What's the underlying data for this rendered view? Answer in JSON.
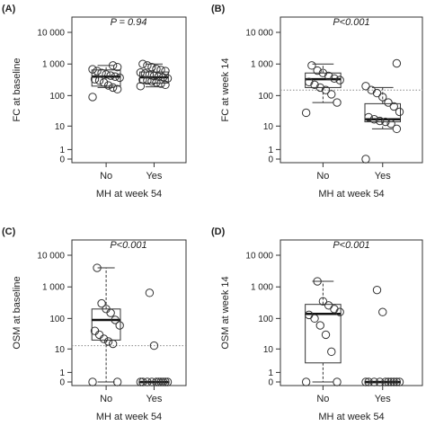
{
  "chart_data": [
    {
      "type": "box",
      "panel": "(A)",
      "pvalue": "P = 0.94",
      "ylabel": "FC at baseline",
      "xlabel": "MH at week 54",
      "categories": [
        "No",
        "Yes"
      ],
      "y_ticks": [
        0,
        1,
        10,
        100,
        1000,
        10000
      ],
      "y_tick_labels": [
        "0",
        "1",
        "10",
        "100",
        "1 000",
        "10 000"
      ],
      "y_scale": "log1p",
      "threshold": null,
      "groups": [
        {
          "name": "No",
          "box": {
            "low": 180,
            "q1": 200,
            "median": 400,
            "q3": 650,
            "high": 900
          },
          "points": [
            90,
            160,
            180,
            210,
            260,
            300,
            330,
            370,
            400,
            430,
            470,
            520,
            600,
            680,
            800,
            900
          ]
        },
        {
          "name": "Yes",
          "box": {
            "low": 190,
            "q1": 250,
            "median": 380,
            "q3": 560,
            "high": 1000
          },
          "points": [
            200,
            220,
            240,
            260,
            280,
            300,
            320,
            350,
            380,
            400,
            420,
            460,
            500,
            540,
            600,
            650,
            700,
            800,
            900,
            1000
          ]
        }
      ]
    },
    {
      "type": "box",
      "panel": "(B)",
      "pvalue": "P<0.001",
      "ylabel": "FC at week 14",
      "xlabel": "MH at week 54",
      "categories": [
        "No",
        "Yes"
      ],
      "y_ticks": [
        0,
        1,
        10,
        100,
        1000,
        10000
      ],
      "y_tick_labels": [
        "0",
        "1",
        "10",
        "100",
        "1 000",
        "10 000"
      ],
      "y_scale": "log1p",
      "threshold": 150,
      "groups": [
        {
          "name": "No",
          "box": {
            "low": 60,
            "q1": 180,
            "median": 330,
            "q3": 520,
            "high": 1000
          },
          "points": [
            28,
            60,
            110,
            150,
            180,
            220,
            270,
            310,
            350,
            420,
            520,
            620,
            900
          ]
        },
        {
          "name": "Yes",
          "box": {
            "low": 8,
            "q1": 14,
            "median": 17,
            "q3": 55,
            "high": 180
          },
          "points": [
            0,
            8,
            12,
            14,
            15,
            17,
            20,
            30,
            45,
            60,
            90,
            120,
            150,
            200,
            1050
          ]
        }
      ]
    },
    {
      "type": "box",
      "panel": "(C)",
      "pvalue": "P<0.001",
      "ylabel": "OSM at baseline",
      "xlabel": "MH at week 54",
      "categories": [
        "No",
        "Yes"
      ],
      "y_ticks": [
        0,
        1,
        10,
        100,
        1000,
        10000
      ],
      "y_tick_labels": [
        "0",
        "1",
        "10",
        "100",
        "1 000",
        "10 000"
      ],
      "y_scale": "log1p",
      "threshold": 13,
      "groups": [
        {
          "name": "No",
          "box": {
            "low": 0,
            "q1": 20,
            "median": 90,
            "q3": 200,
            "high": 4000
          },
          "points": [
            0,
            0,
            15,
            18,
            22,
            30,
            40,
            60,
            90,
            150,
            200,
            300,
            4000
          ]
        },
        {
          "name": "Yes",
          "box": {
            "low": 0,
            "q1": 0,
            "median": 0,
            "q3": 0,
            "high": 0
          },
          "points": [
            0,
            0,
            0,
            0,
            0,
            0,
            0,
            0,
            0,
            0,
            13,
            650
          ]
        }
      ]
    },
    {
      "type": "box",
      "panel": "(D)",
      "pvalue": "P<0.001",
      "ylabel": "OSM at week 14",
      "xlabel": "MH at week 54",
      "categories": [
        "No",
        "Yes"
      ],
      "y_ticks": [
        0,
        1,
        10,
        100,
        1000,
        10000
      ],
      "y_tick_labels": [
        "0",
        "1",
        "10",
        "100",
        "1 000",
        "10 000"
      ],
      "y_scale": "log1p",
      "threshold": null,
      "groups": [
        {
          "name": "No",
          "box": {
            "low": 0,
            "q1": 3,
            "median": 140,
            "q3": 280,
            "high": 1500
          },
          "points": [
            0,
            0,
            8,
            30,
            60,
            100,
            130,
            160,
            200,
            260,
            350,
            1500
          ]
        },
        {
          "name": "Yes",
          "box": {
            "low": 0,
            "q1": 0,
            "median": 0,
            "q3": 0,
            "high": 0
          },
          "points": [
            0,
            0,
            0,
            0,
            0,
            0,
            0,
            0,
            0,
            0,
            160,
            800
          ]
        }
      ]
    }
  ]
}
